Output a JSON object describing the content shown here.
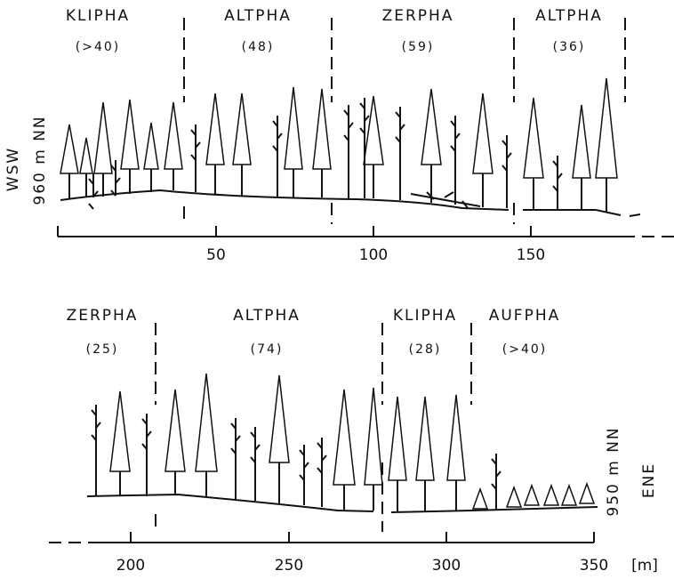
{
  "top": {
    "phases": [
      {
        "name": "KLIPHA",
        "count": "(>40)"
      },
      {
        "name": "ALTPHA",
        "count": "(48)"
      },
      {
        "name": "ZERPHA",
        "count": "(59)"
      },
      {
        "name": "ALTPHA",
        "count": "(36)"
      }
    ],
    "direction": "WSW",
    "elevation": "960 m NN",
    "ticks": [
      "50",
      "100",
      "150"
    ]
  },
  "bottom": {
    "phases": [
      {
        "name": "ZERPHA",
        "count": "(25)"
      },
      {
        "name": "ALTPHA",
        "count": "(74)"
      },
      {
        "name": "KLIPHA",
        "count": "(28)"
      },
      {
        "name": "AUFPHA",
        "count": "(>40)"
      }
    ],
    "direction": "ENE",
    "elevation": "950 m NN",
    "ticks": [
      "200",
      "250",
      "300",
      "350"
    ],
    "unit": "[m]"
  }
}
